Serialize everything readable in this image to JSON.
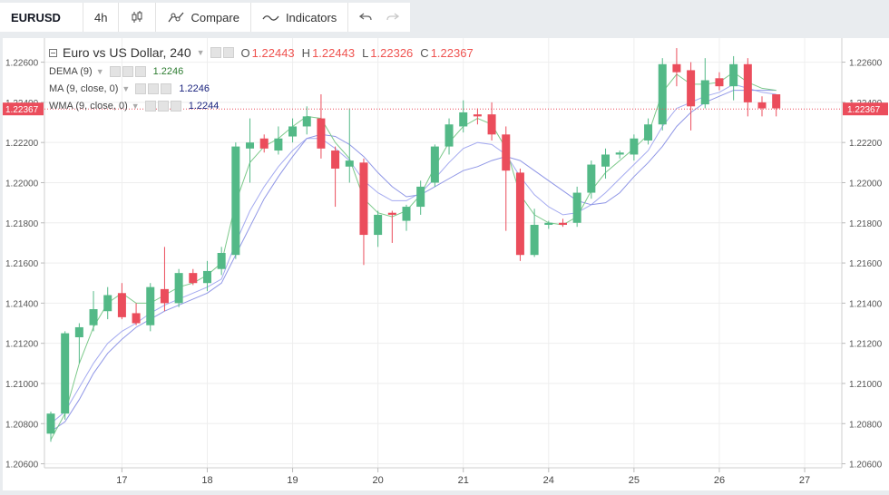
{
  "toolbar": {
    "symbol": "EURUSD",
    "interval": "4h",
    "compare_label": "Compare",
    "indicators_label": "Indicators"
  },
  "legend": {
    "title": "Euro vs US Dollar, 240",
    "ohlc": [
      {
        "key": "O",
        "value": "1.22443"
      },
      {
        "key": "H",
        "value": "1.22443"
      },
      {
        "key": "L",
        "value": "1.22326"
      },
      {
        "key": "C",
        "value": "1.22367"
      }
    ],
    "indicators": [
      {
        "name": "DEMA (9)",
        "value": "1.2246",
        "color": "#2e7d32"
      },
      {
        "name": "MA (9, close, 0)",
        "value": "1.2246",
        "color": "#1a237e"
      },
      {
        "name": "WMA (9, close, 0)",
        "value": "1.2244",
        "color": "#1a237e"
      }
    ]
  },
  "chart_data": {
    "type": "candlestick",
    "ylim": [
      1.2058,
      1.2272
    ],
    "y_ticks": [
      "1.20600",
      "1.20800",
      "1.21000",
      "1.21200",
      "1.21400",
      "1.21600",
      "1.21800",
      "1.22000",
      "1.22200",
      "1.22400",
      "1.22600"
    ],
    "x_ticks": [
      {
        "label": "17",
        "index": 5
      },
      {
        "label": "18",
        "index": 11
      },
      {
        "label": "19",
        "index": 17
      },
      {
        "label": "20",
        "index": 23
      },
      {
        "label": "21",
        "index": 29
      },
      {
        "label": "24",
        "index": 35
      },
      {
        "label": "25",
        "index": 41
      },
      {
        "label": "26",
        "index": 47
      },
      {
        "label": "27",
        "index": 53
      }
    ],
    "last_price": "1.22367",
    "colors": {
      "up": "#53b987",
      "down": "#eb4d5c",
      "dema": "#7cc98a",
      "ma": "#8f96e6",
      "wma": "#a4aaf0",
      "price_line": "#eb4d5c"
    },
    "candles": [
      {
        "o": 1.2075,
        "h": 1.2086,
        "l": 1.2071,
        "c": 1.2085
      },
      {
        "o": 1.2085,
        "h": 1.2126,
        "l": 1.2082,
        "c": 1.2125
      },
      {
        "o": 1.2123,
        "h": 1.213,
        "l": 1.211,
        "c": 1.2128
      },
      {
        "o": 1.2129,
        "h": 1.2146,
        "l": 1.2126,
        "c": 1.2137
      },
      {
        "o": 1.2136,
        "h": 1.2148,
        "l": 1.2132,
        "c": 1.2144
      },
      {
        "o": 1.2145,
        "h": 1.215,
        "l": 1.2132,
        "c": 1.2133
      },
      {
        "o": 1.2135,
        "h": 1.214,
        "l": 1.2129,
        "c": 1.213
      },
      {
        "o": 1.2129,
        "h": 1.215,
        "l": 1.2126,
        "c": 1.2148
      },
      {
        "o": 1.2147,
        "h": 1.2168,
        "l": 1.2136,
        "c": 1.214
      },
      {
        "o": 1.214,
        "h": 1.2157,
        "l": 1.2138,
        "c": 1.2155
      },
      {
        "o": 1.2155,
        "h": 1.2157,
        "l": 1.2149,
        "c": 1.215
      },
      {
        "o": 1.215,
        "h": 1.2161,
        "l": 1.2146,
        "c": 1.2156
      },
      {
        "o": 1.2157,
        "h": 1.2168,
        "l": 1.2154,
        "c": 1.2165
      },
      {
        "o": 1.2164,
        "h": 1.222,
        "l": 1.2162,
        "c": 1.2218
      },
      {
        "o": 1.2217,
        "h": 1.2232,
        "l": 1.22,
        "c": 1.222
      },
      {
        "o": 1.2222,
        "h": 1.2224,
        "l": 1.2215,
        "c": 1.2217
      },
      {
        "o": 1.2216,
        "h": 1.2228,
        "l": 1.2214,
        "c": 1.2222
      },
      {
        "o": 1.2223,
        "h": 1.2232,
        "l": 1.222,
        "c": 1.2228
      },
      {
        "o": 1.2228,
        "h": 1.2238,
        "l": 1.2224,
        "c": 1.2233
      },
      {
        "o": 1.2232,
        "h": 1.2244,
        "l": 1.2212,
        "c": 1.2217
      },
      {
        "o": 1.2216,
        "h": 1.2218,
        "l": 1.2188,
        "c": 1.2207
      },
      {
        "o": 1.2208,
        "h": 1.2237,
        "l": 1.22,
        "c": 1.2211
      },
      {
        "o": 1.221,
        "h": 1.2212,
        "l": 1.2159,
        "c": 1.2174
      },
      {
        "o": 1.2174,
        "h": 1.2186,
        "l": 1.2168,
        "c": 1.2184
      },
      {
        "o": 1.2185,
        "h": 1.2186,
        "l": 1.217,
        "c": 1.2184
      },
      {
        "o": 1.2181,
        "h": 1.2189,
        "l": 1.2176,
        "c": 1.2188
      },
      {
        "o": 1.2188,
        "h": 1.2201,
        "l": 1.2184,
        "c": 1.2198
      },
      {
        "o": 1.22,
        "h": 1.2219,
        "l": 1.2198,
        "c": 1.2218
      },
      {
        "o": 1.2218,
        "h": 1.2232,
        "l": 1.2214,
        "c": 1.2229
      },
      {
        "o": 1.2228,
        "h": 1.2241,
        "l": 1.2225,
        "c": 1.2235
      },
      {
        "o": 1.2234,
        "h": 1.2237,
        "l": 1.2229,
        "c": 1.2233
      },
      {
        "o": 1.2234,
        "h": 1.224,
        "l": 1.2221,
        "c": 1.2224
      },
      {
        "o": 1.2224,
        "h": 1.2228,
        "l": 1.2176,
        "c": 1.2206
      },
      {
        "o": 1.2205,
        "h": 1.2207,
        "l": 1.2161,
        "c": 1.2164
      },
      {
        "o": 1.2164,
        "h": 1.2187,
        "l": 1.2163,
        "c": 1.2179
      },
      {
        "o": 1.2179,
        "h": 1.2181,
        "l": 1.2177,
        "c": 1.218
      },
      {
        "o": 1.218,
        "h": 1.2182,
        "l": 1.2178,
        "c": 1.2179
      },
      {
        "o": 1.218,
        "h": 1.2198,
        "l": 1.2178,
        "c": 1.2195
      },
      {
        "o": 1.2195,
        "h": 1.2211,
        "l": 1.2192,
        "c": 1.2209
      },
      {
        "o": 1.2208,
        "h": 1.2217,
        "l": 1.2202,
        "c": 1.2214
      },
      {
        "o": 1.2214,
        "h": 1.2216,
        "l": 1.2212,
        "c": 1.2215
      },
      {
        "o": 1.2214,
        "h": 1.2224,
        "l": 1.2211,
        "c": 1.2222
      },
      {
        "o": 1.2221,
        "h": 1.2232,
        "l": 1.2219,
        "c": 1.2229
      },
      {
        "o": 1.2229,
        "h": 1.2262,
        "l": 1.2226,
        "c": 1.2259
      },
      {
        "o": 1.2259,
        "h": 1.2267,
        "l": 1.2248,
        "c": 1.2255
      },
      {
        "o": 1.2256,
        "h": 1.226,
        "l": 1.2226,
        "c": 1.2238
      },
      {
        "o": 1.2239,
        "h": 1.2262,
        "l": 1.2237,
        "c": 1.2251
      },
      {
        "o": 1.2252,
        "h": 1.2255,
        "l": 1.2246,
        "c": 1.2248
      },
      {
        "o": 1.2248,
        "h": 1.2263,
        "l": 1.2241,
        "c": 1.2259
      },
      {
        "o": 1.2259,
        "h": 1.2262,
        "l": 1.2233,
        "c": 1.224
      },
      {
        "o": 1.224,
        "h": 1.2243,
        "l": 1.2233,
        "c": 1.2237
      },
      {
        "o": 1.2244,
        "h": 1.2244,
        "l": 1.2233,
        "c": 1.2237
      }
    ],
    "dema": [
      1.2072,
      1.2085,
      1.211,
      1.2128,
      1.214,
      1.2145,
      1.214,
      1.214,
      1.2144,
      1.2148,
      1.215,
      1.2154,
      1.216,
      1.219,
      1.221,
      1.2218,
      1.2222,
      1.2228,
      1.2233,
      1.2232,
      1.222,
      1.2212,
      1.2192,
      1.2185,
      1.2183,
      1.2186,
      1.2194,
      1.2208,
      1.222,
      1.2228,
      1.2232,
      1.2229,
      1.2217,
      1.2194,
      1.2184,
      1.218,
      1.2179,
      1.2183,
      1.2196,
      1.2205,
      1.2211,
      1.2217,
      1.2224,
      1.2245,
      1.2254,
      1.2249,
      1.2249,
      1.225,
      1.2255,
      1.225,
      1.2247,
      1.2246
    ],
    "ma": [
      1.2076,
      1.2081,
      1.2092,
      1.2105,
      1.2115,
      1.2122,
      1.2128,
      1.2132,
      1.2136,
      1.2139,
      1.2142,
      1.2145,
      1.215,
      1.2164,
      1.2178,
      1.2192,
      1.2203,
      1.2213,
      1.2222,
      1.2224,
      1.2223,
      1.2219,
      1.2213,
      1.2205,
      1.2198,
      1.2193,
      1.2194,
      1.2198,
      1.2202,
      1.2206,
      1.2208,
      1.2211,
      1.2213,
      1.2211,
      1.2206,
      1.2201,
      1.2196,
      1.2191,
      1.2189,
      1.219,
      1.2195,
      1.2203,
      1.221,
      1.2218,
      1.2228,
      1.2235,
      1.224,
      1.2243,
      1.2246,
      1.2246,
      1.2246,
      1.2246
    ],
    "wma": [
      1.208,
      1.2086,
      1.2098,
      1.211,
      1.212,
      1.2126,
      1.213,
      1.2135,
      1.2139,
      1.2142,
      1.2145,
      1.2148,
      1.2152,
      1.217,
      1.2186,
      1.2198,
      1.2208,
      1.2216,
      1.2222,
      1.2222,
      1.2217,
      1.2211,
      1.2201,
      1.2195,
      1.2191,
      1.2191,
      1.2195,
      1.2202,
      1.221,
      1.2217,
      1.222,
      1.2219,
      1.2214,
      1.2203,
      1.2194,
      1.2188,
      1.2184,
      1.2185,
      1.2189,
      1.2195,
      1.2202,
      1.2209,
      1.2216,
      1.2228,
      1.2237,
      1.224,
      1.2243,
      1.2245,
      1.2249,
      1.2247,
      1.2245,
      1.2244
    ]
  }
}
